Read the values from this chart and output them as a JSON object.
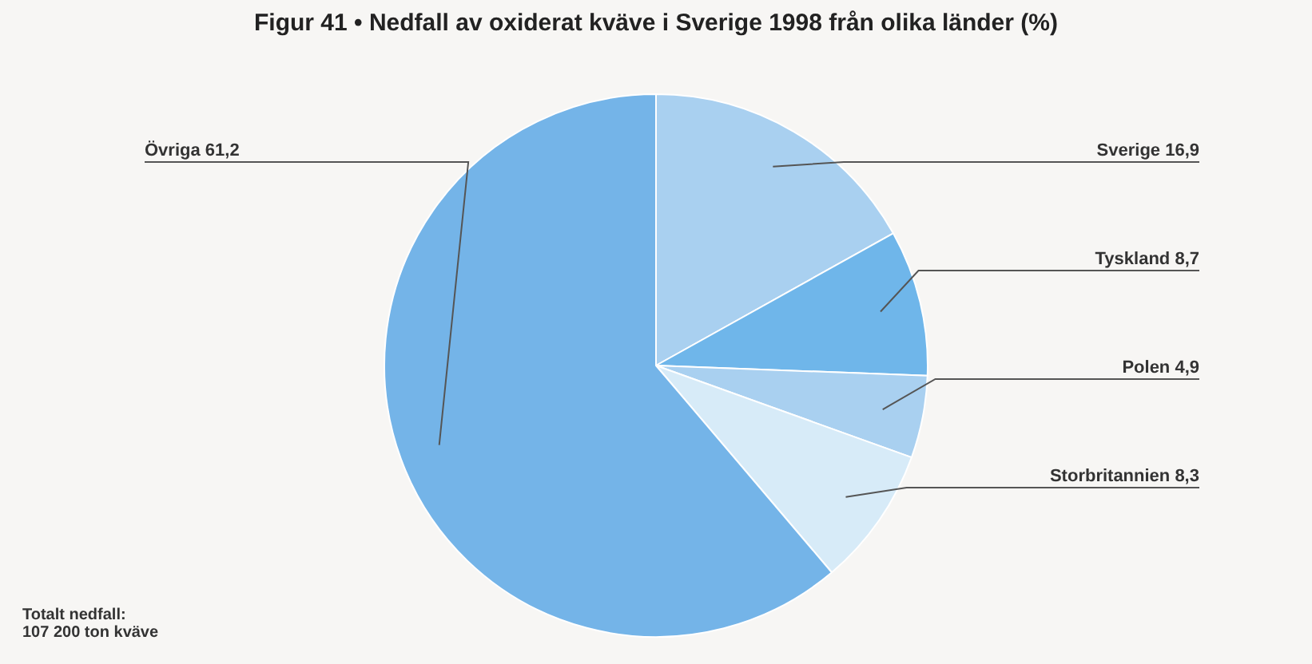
{
  "chart_data": {
    "type": "pie",
    "title": "Figur 41 • Nedfall av oxiderat kväve i Sverige 1998 från olika länder (%)",
    "categories": [
      "Sverige",
      "Tyskland",
      "Polen",
      "Storbritannien",
      "Övriga"
    ],
    "values": [
      16.9,
      8.7,
      4.9,
      8.3,
      61.2
    ],
    "value_labels": [
      "16,9",
      "8,7",
      "4,9",
      "8,3",
      "61,2"
    ],
    "colors": [
      "#a9d0f0",
      "#6fb6ea",
      "#a9d0f0",
      "#d7ebf8",
      "#74b4e8"
    ],
    "legend": false,
    "annotations": [
      "Totalt nedfall:\n107 200 ton kväve"
    ]
  }
}
